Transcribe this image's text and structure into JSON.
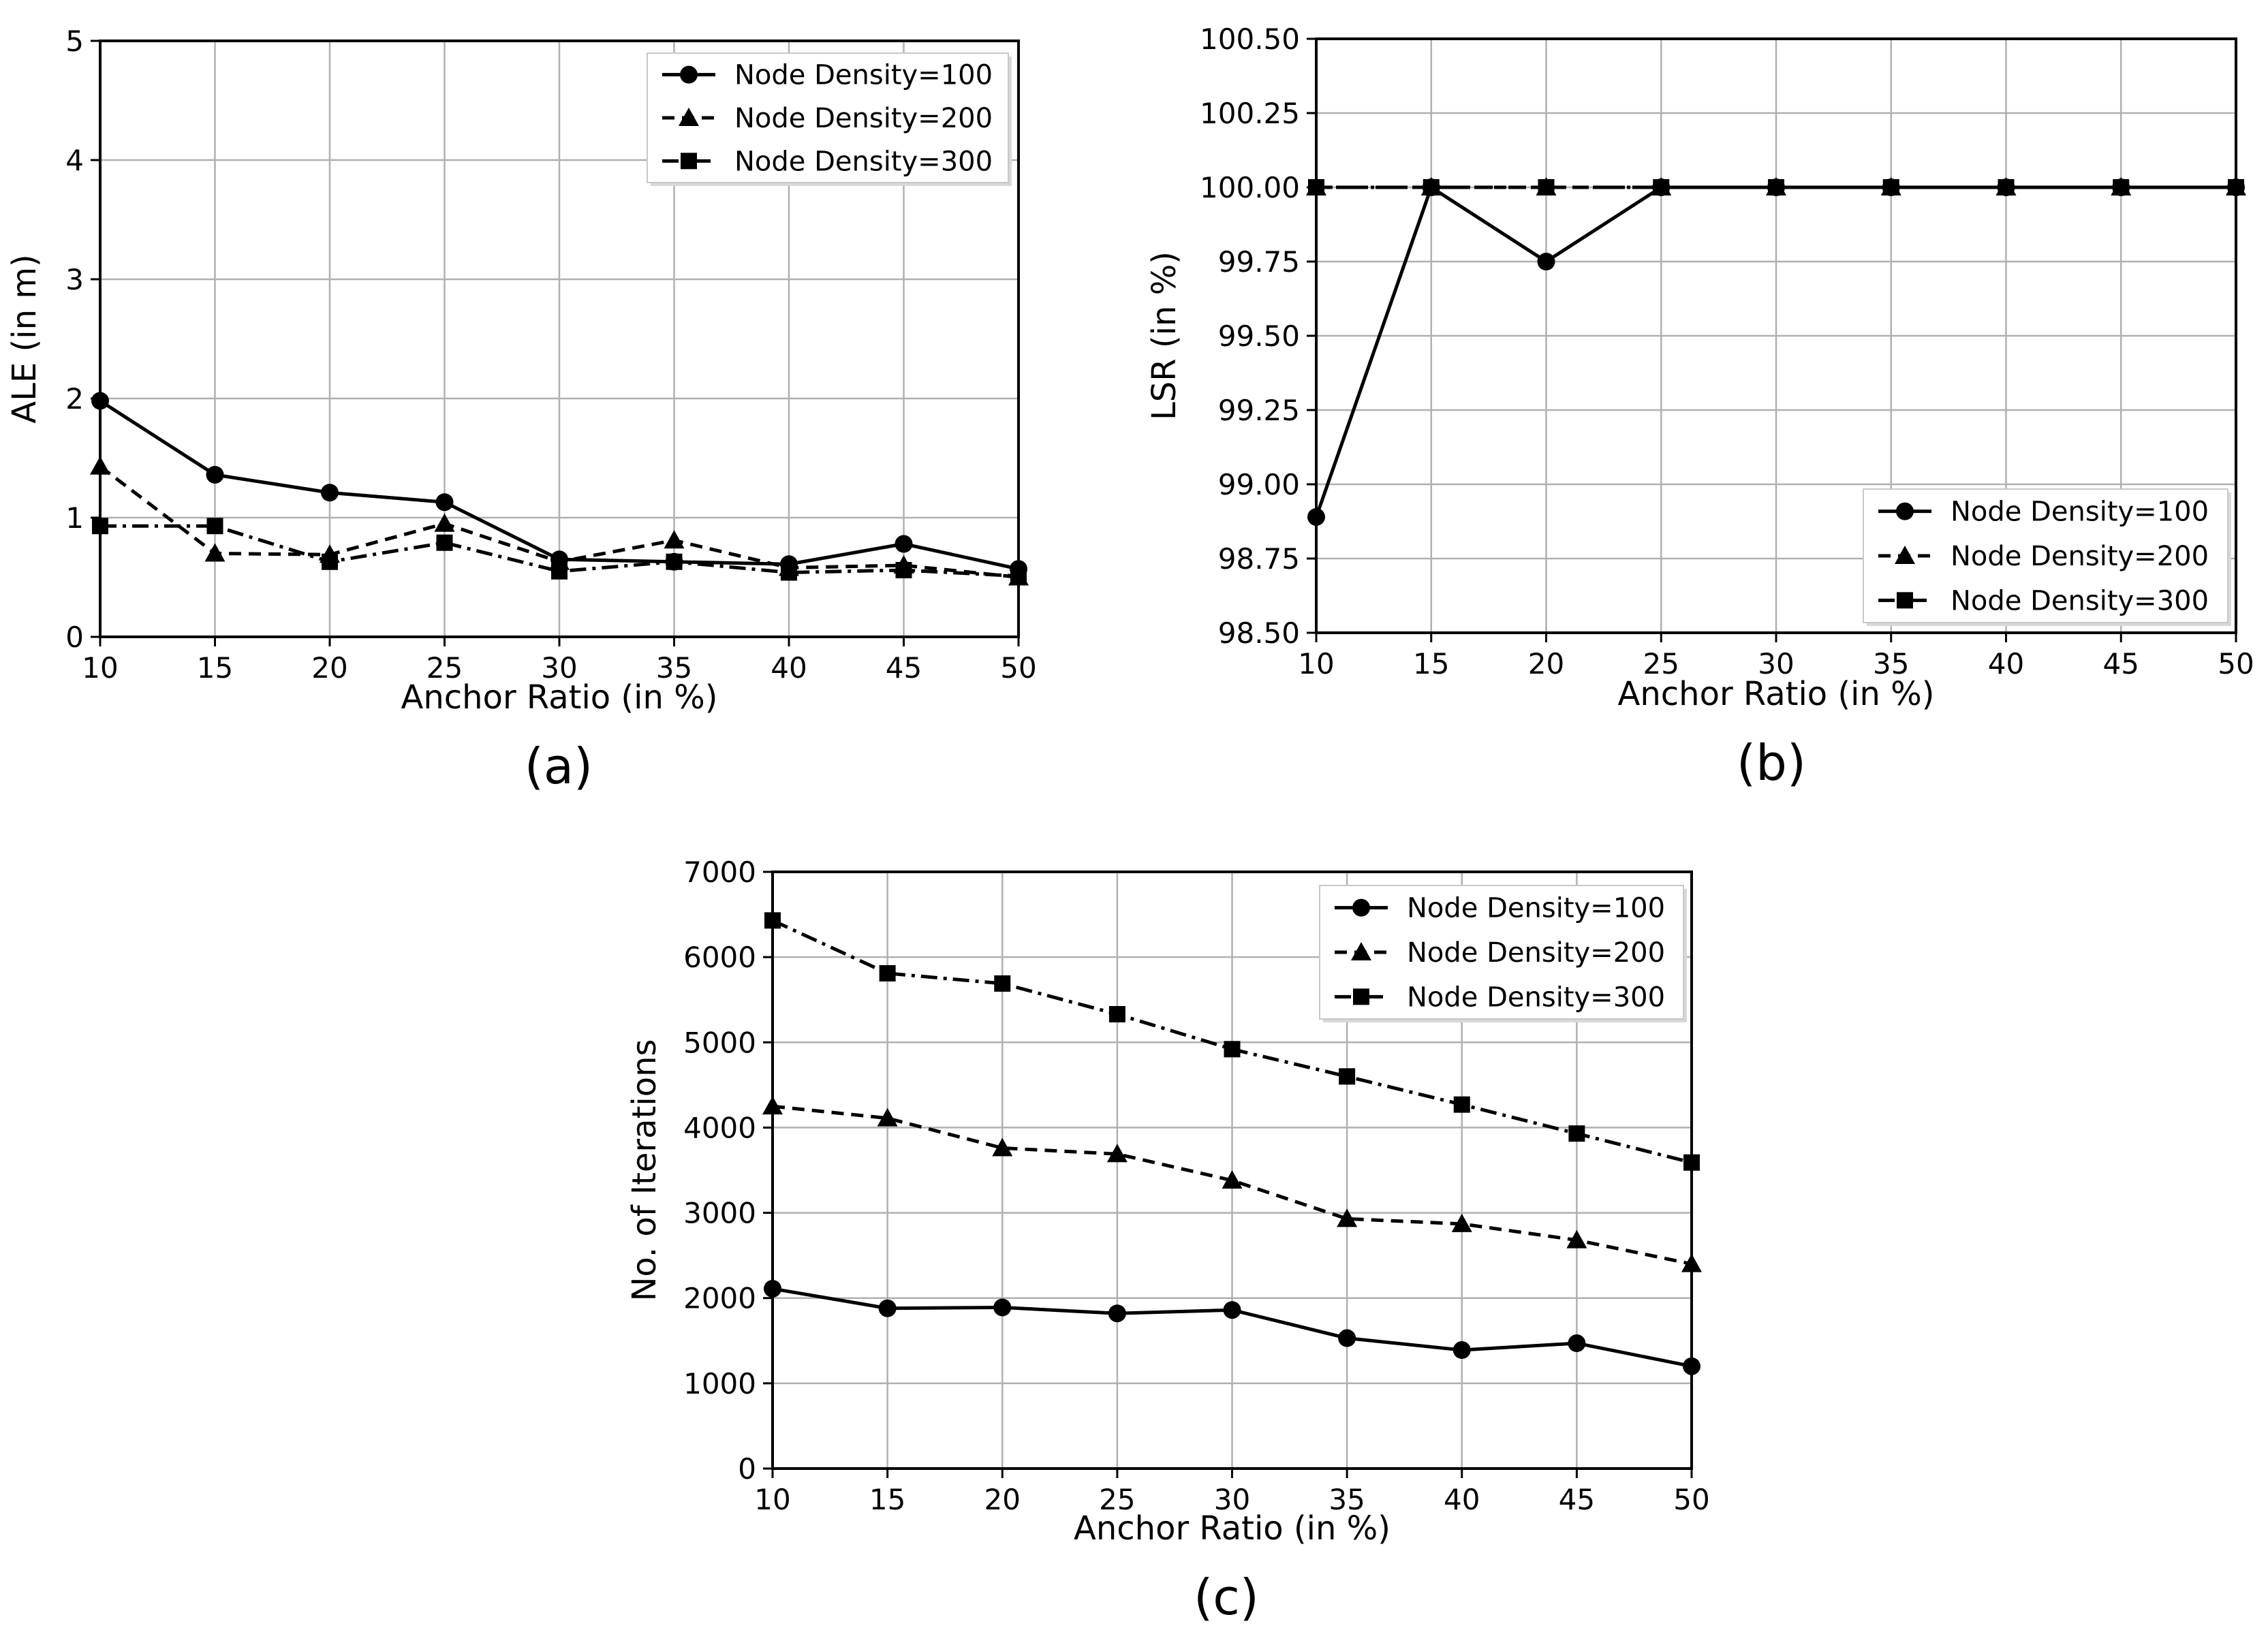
{
  "chart_data": [
    {
      "panel": "a",
      "caption": "(a)",
      "type": "line",
      "xlabel": "Anchor Ratio (in %)",
      "ylabel": "ALE (in m)",
      "x": [
        10,
        15,
        20,
        25,
        30,
        35,
        40,
        45,
        50
      ],
      "xlim": [
        10,
        50
      ],
      "ylim": [
        0,
        5
      ],
      "xticks": [
        10,
        15,
        20,
        25,
        30,
        35,
        40,
        45,
        50
      ],
      "yticks": [
        0,
        1,
        2,
        3,
        4,
        5
      ],
      "ytick_labels": [
        "0",
        "1",
        "2",
        "3",
        "4",
        "5"
      ],
      "grid": true,
      "legend_position": "top-right",
      "series": [
        {
          "name": "Node Density=100",
          "marker": "circle",
          "linestyle": "solid",
          "values": [
            1.98,
            1.36,
            1.21,
            1.13,
            0.65,
            0.63,
            0.61,
            0.78,
            0.57
          ]
        },
        {
          "name": "Node Density=200",
          "marker": "triangle",
          "linestyle": "dashed",
          "values": [
            1.43,
            0.7,
            0.69,
            0.95,
            0.63,
            0.81,
            0.58,
            0.6,
            0.5
          ]
        },
        {
          "name": "Node Density=300",
          "marker": "square",
          "linestyle": "dashdot",
          "values": [
            0.93,
            0.93,
            0.63,
            0.79,
            0.55,
            0.63,
            0.54,
            0.56,
            0.51
          ]
        }
      ]
    },
    {
      "panel": "b",
      "caption": "(b)",
      "type": "line",
      "xlabel": "Anchor Ratio (in %)",
      "ylabel": "LSR (in %)",
      "x": [
        10,
        15,
        20,
        25,
        30,
        35,
        40,
        45,
        50
      ],
      "xlim": [
        10,
        50
      ],
      "ylim": [
        98.5,
        100.5
      ],
      "xticks": [
        10,
        15,
        20,
        25,
        30,
        35,
        40,
        45,
        50
      ],
      "yticks": [
        98.5,
        98.75,
        99.0,
        99.25,
        99.5,
        99.75,
        100.0,
        100.25,
        100.5
      ],
      "ytick_labels": [
        "98.50",
        "98.75",
        "99.00",
        "99.25",
        "99.50",
        "99.75",
        "100.00",
        "100.25",
        "100.50"
      ],
      "grid": true,
      "legend_position": "bottom-right",
      "series": [
        {
          "name": "Node Density=100",
          "marker": "circle",
          "linestyle": "solid",
          "values": [
            98.89,
            100.0,
            99.75,
            100.0,
            100.0,
            100.0,
            100.0,
            100.0,
            100.0
          ]
        },
        {
          "name": "Node Density=200",
          "marker": "triangle",
          "linestyle": "dashed",
          "values": [
            100.0,
            100.0,
            100.0,
            100.0,
            100.0,
            100.0,
            100.0,
            100.0,
            100.0
          ]
        },
        {
          "name": "Node Density=300",
          "marker": "square",
          "linestyle": "dashdot",
          "values": [
            100.0,
            100.0,
            100.0,
            100.0,
            100.0,
            100.0,
            100.0,
            100.0,
            100.0
          ]
        }
      ]
    },
    {
      "panel": "c",
      "caption": "(c)",
      "type": "line",
      "xlabel": "Anchor Ratio (in %)",
      "ylabel": "No. of Iterations",
      "x": [
        10,
        15,
        20,
        25,
        30,
        35,
        40,
        45,
        50
      ],
      "xlim": [
        10,
        50
      ],
      "ylim": [
        0,
        7000
      ],
      "xticks": [
        10,
        15,
        20,
        25,
        30,
        35,
        40,
        45,
        50
      ],
      "yticks": [
        0,
        1000,
        2000,
        3000,
        4000,
        5000,
        6000,
        7000
      ],
      "ytick_labels": [
        "0",
        "1000",
        "2000",
        "3000",
        "4000",
        "5000",
        "6000",
        "7000"
      ],
      "grid": true,
      "legend_position": "top-right",
      "series": [
        {
          "name": "Node Density=100",
          "marker": "circle",
          "linestyle": "solid",
          "values": [
            2110,
            1880,
            1890,
            1820,
            1860,
            1530,
            1390,
            1470,
            1200
          ]
        },
        {
          "name": "Node Density=200",
          "marker": "triangle",
          "linestyle": "dashed",
          "values": [
            4250,
            4110,
            3760,
            3690,
            3380,
            2930,
            2870,
            2680,
            2400
          ]
        },
        {
          "name": "Node Density=300",
          "marker": "square",
          "linestyle": "dashdot",
          "values": [
            6430,
            5810,
            5690,
            5330,
            4920,
            4600,
            4270,
            3930,
            3590
          ]
        }
      ]
    }
  ]
}
